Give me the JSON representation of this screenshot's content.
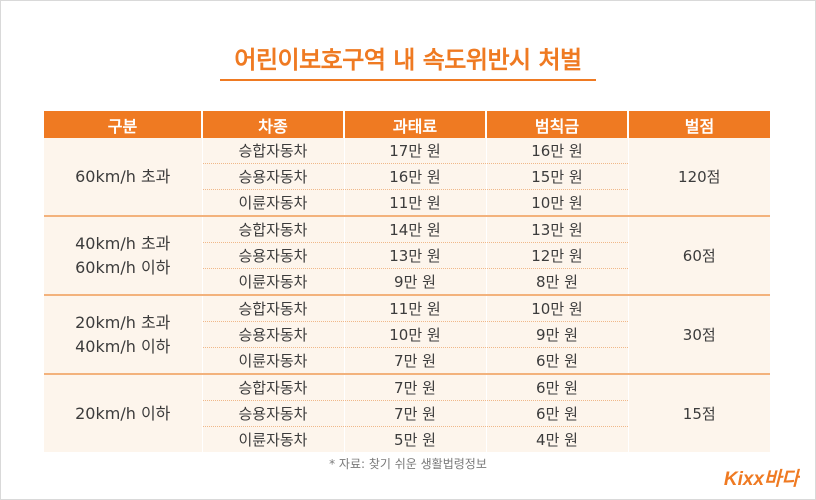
{
  "title": "어린이보호구역 내 속도위반시 처벌",
  "table": {
    "headers": [
      "구분",
      "차종",
      "과태료",
      "범칙금",
      "벌점"
    ],
    "groups": [
      {
        "label_lines": [
          "60km/h 초과"
        ],
        "points": "120점",
        "rows": [
          {
            "vehicle": "승합자동차",
            "fine": "17만 원",
            "penalty": "16만 원"
          },
          {
            "vehicle": "승용자동차",
            "fine": "16만 원",
            "penalty": "15만 원"
          },
          {
            "vehicle": "이륜자동차",
            "fine": "11만 원",
            "penalty": "10만 원"
          }
        ]
      },
      {
        "label_lines": [
          "40km/h 초과",
          "60km/h 이하"
        ],
        "points": "60점",
        "rows": [
          {
            "vehicle": "승합자동차",
            "fine": "14만 원",
            "penalty": "13만 원"
          },
          {
            "vehicle": "승용자동차",
            "fine": "13만 원",
            "penalty": "12만 원"
          },
          {
            "vehicle": "이륜자동차",
            "fine": "9만 원",
            "penalty": "8만 원"
          }
        ]
      },
      {
        "label_lines": [
          "20km/h 초과",
          "40km/h 이하"
        ],
        "points": "30점",
        "rows": [
          {
            "vehicle": "승합자동차",
            "fine": "11만 원",
            "penalty": "10만 원"
          },
          {
            "vehicle": "승용자동차",
            "fine": "10만 원",
            "penalty": "9만 원"
          },
          {
            "vehicle": "이륜자동차",
            "fine": "7만 원",
            "penalty": "6만 원"
          }
        ]
      },
      {
        "label_lines": [
          "20km/h 이하"
        ],
        "points": "15점",
        "rows": [
          {
            "vehicle": "승합자동차",
            "fine": "7만 원",
            "penalty": "6만 원"
          },
          {
            "vehicle": "승용자동차",
            "fine": "7만 원",
            "penalty": "6만 원"
          },
          {
            "vehicle": "이륜자동차",
            "fine": "5만 원",
            "penalty": "4만 원"
          }
        ]
      }
    ]
  },
  "source": "* 자료: 찾기 쉬운 생활법령정보",
  "logo": {
    "text": "Kixx바다",
    "color": "#ef7a22"
  },
  "colors": {
    "accent": "#ef7a22",
    "row_bg": "#fdf5ec",
    "separator": "#f3b27c"
  }
}
